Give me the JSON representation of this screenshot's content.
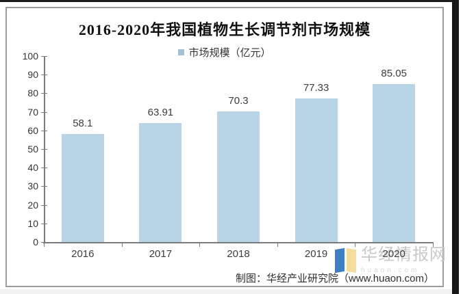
{
  "chart_data": {
    "type": "bar",
    "title": "2016-2020年我国植物生长调节剂市场规模",
    "legend": "市场规模（亿元）",
    "categories": [
      "2016",
      "2017",
      "2018",
      "2019",
      "2020"
    ],
    "values": [
      58.1,
      63.91,
      70.3,
      77.33,
      85.05
    ],
    "value_labels": [
      "58.1",
      "63.91",
      "70.3",
      "77.33",
      "85.05"
    ],
    "ylim": [
      0,
      100
    ],
    "ytick_step": 10,
    "grid": false,
    "legend_position": "top-center",
    "colors": {
      "bar": "#b9d4e6",
      "legend_marker": "#a7bfd3",
      "axis": "#7a7a7a",
      "label": "#3c3c3c"
    }
  },
  "footer": {
    "source": "制图：华经产业研究院（www.huaon.com）"
  },
  "watermark": {
    "text": "华经情报网",
    "subtext": "huaon.com",
    "logo_colors": {
      "left": "#3f7fc1",
      "right": "#f3dd9c"
    }
  }
}
